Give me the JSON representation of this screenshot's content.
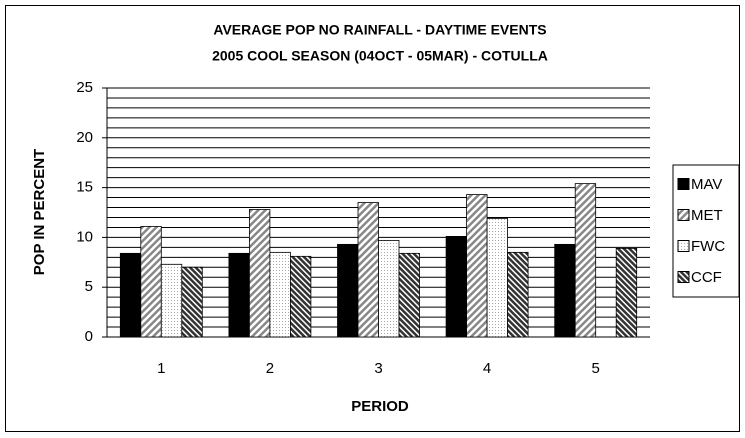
{
  "chart_data": {
    "type": "bar",
    "title": "AVERAGE POP NO RAINFALL - DAYTIME EVENTS",
    "subtitle": "2005 COOL SEASON (04OCT - 05MAR) - COTULLA",
    "y_label": "POP IN PERCENT",
    "x_label": "PERIOD",
    "categories": [
      "1",
      "2",
      "3",
      "4",
      "5"
    ],
    "series": [
      {
        "name": "MAV",
        "color": "#000000",
        "pattern": "solid",
        "values": [
          8.4,
          8.4,
          9.3,
          10.1,
          9.3
        ]
      },
      {
        "name": "MET",
        "color": "#999999",
        "pattern": "hatch",
        "values": [
          11.1,
          12.8,
          13.5,
          14.3,
          15.4
        ]
      },
      {
        "name": "FWC",
        "color": "#dddddd",
        "pattern": "dots",
        "values": [
          7.3,
          8.5,
          9.7,
          11.9,
          null
        ]
      },
      {
        "name": "CCF",
        "color": "#444444",
        "pattern": "dense-hatch",
        "values": [
          7.0,
          8.1,
          8.4,
          8.5,
          8.9
        ]
      }
    ],
    "ylim": [
      0,
      25
    ],
    "yticks": [
      0,
      5,
      10,
      15,
      20,
      25
    ],
    "grid_lines": [
      1,
      2,
      3,
      4,
      5,
      6,
      7,
      8,
      9,
      10,
      11,
      12,
      13,
      14,
      15,
      16,
      17,
      18,
      19,
      20,
      21,
      22,
      23,
      24,
      25
    ],
    "grid": true,
    "legend": "right"
  }
}
